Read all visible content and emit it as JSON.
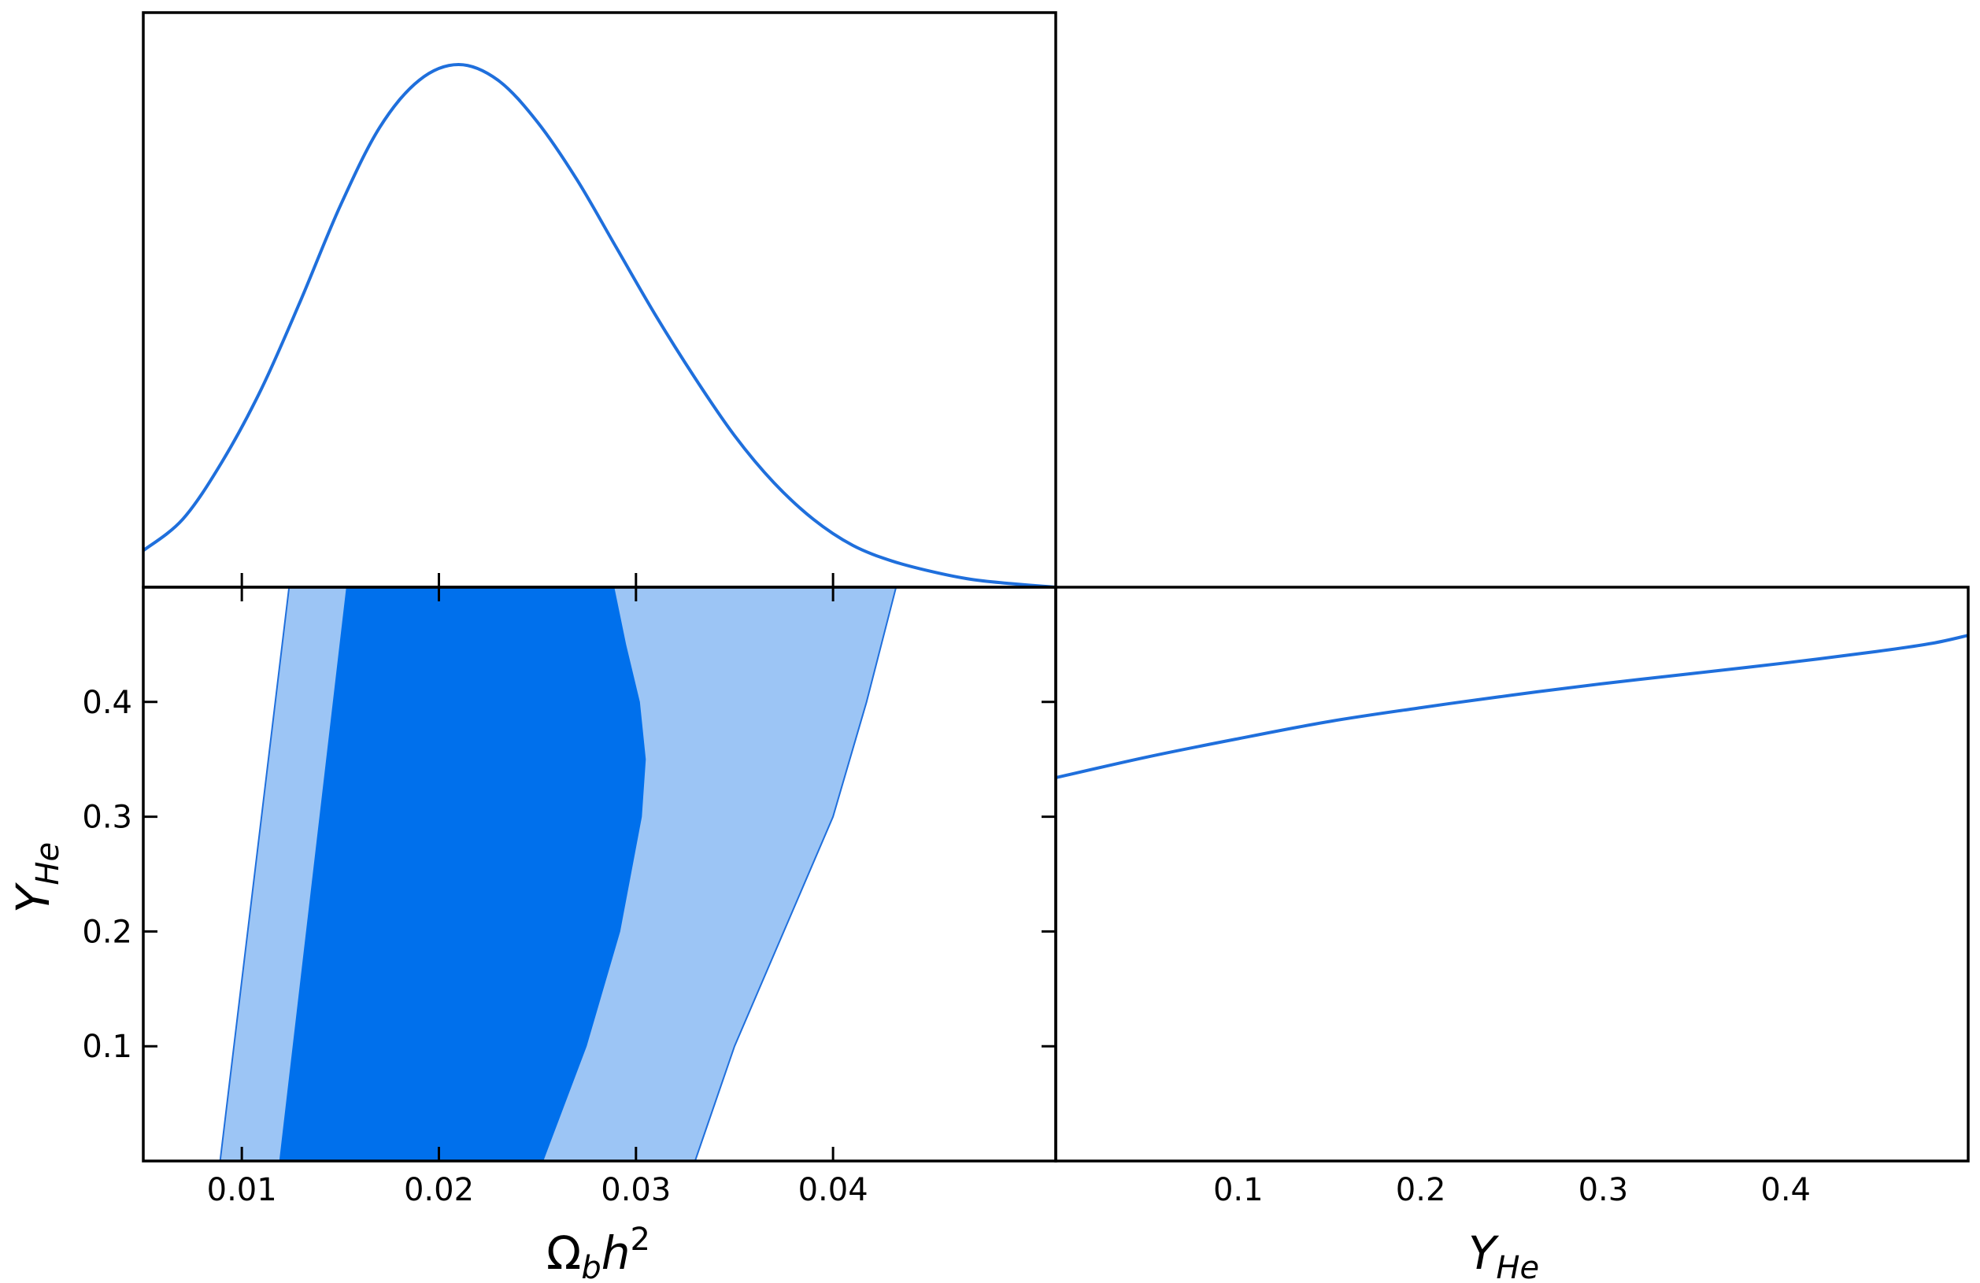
{
  "chart_data": [
    {
      "type": "line",
      "panel": "marginal-omegabh2",
      "xlim": [
        0.005,
        0.0513
      ],
      "x_ticks": [
        0.01,
        0.02,
        0.03,
        0.04
      ],
      "y_ticks_shown": false,
      "series": [
        {
          "color": "#1f6fdc",
          "x": [
            0.005,
            0.007,
            0.009,
            0.011,
            0.013,
            0.015,
            0.017,
            0.019,
            0.021,
            0.023,
            0.025,
            0.027,
            0.029,
            0.031,
            0.033,
            0.035,
            0.037,
            0.039,
            0.041,
            0.043,
            0.045,
            0.047,
            0.049,
            0.0513
          ],
          "y": [
            0.07,
            0.13,
            0.24,
            0.38,
            0.55,
            0.73,
            0.88,
            0.97,
            1.0,
            0.97,
            0.89,
            0.78,
            0.65,
            0.52,
            0.4,
            0.29,
            0.2,
            0.13,
            0.08,
            0.05,
            0.03,
            0.015,
            0.007,
            0.0
          ]
        }
      ]
    },
    {
      "type": "contour",
      "panel": "joint-omegabh2-yhe",
      "xlabel": "Ω_b h^2",
      "ylabel": "Y_He",
      "xlim": [
        0.005,
        0.0513
      ],
      "ylim": [
        0.0,
        0.5
      ],
      "x_ticks": [
        0.01,
        0.02,
        0.03,
        0.04
      ],
      "x_tick_labels": [
        "0.01",
        "0.02",
        "0.03",
        "0.04"
      ],
      "y_ticks": [
        0.1,
        0.2,
        0.3,
        0.4
      ],
      "y_tick_labels": [
        "0.1",
        "0.2",
        "0.3",
        "0.4"
      ],
      "regions": [
        {
          "level": "95%",
          "color": "#9cc5f5",
          "left_edge": [
            [
              0.0089,
              0.0
            ],
            [
              0.0124,
              0.5
            ]
          ],
          "right_edge": [
            [
              0.033,
              0.0
            ],
            [
              0.035,
              0.1
            ],
            [
              0.0375,
              0.2
            ],
            [
              0.04,
              0.3
            ],
            [
              0.0417,
              0.4
            ],
            [
              0.0432,
              0.5
            ]
          ]
        },
        {
          "level": "68%",
          "color": "#0070ec",
          "left_edge": [
            [
              0.0119,
              0.0
            ],
            [
              0.0153,
              0.5
            ]
          ],
          "right_edge": [
            [
              0.0253,
              0.0
            ],
            [
              0.0275,
              0.1
            ],
            [
              0.0292,
              0.2
            ],
            [
              0.0303,
              0.3
            ],
            [
              0.0305,
              0.35
            ],
            [
              0.0302,
              0.4
            ],
            [
              0.0295,
              0.45
            ],
            [
              0.0289,
              0.5
            ]
          ]
        }
      ]
    },
    {
      "type": "line",
      "panel": "marginal-yhe",
      "xlabel": "Y_He",
      "xlim": [
        0.0,
        0.5
      ],
      "x_ticks": [
        0.1,
        0.2,
        0.3,
        0.4
      ],
      "x_tick_labels": [
        "0.1",
        "0.2",
        "0.3",
        "0.4"
      ],
      "y_ticks_shown": false,
      "series": [
        {
          "color": "#1f6fdc",
          "x": [
            0.0,
            0.05,
            0.1,
            0.15,
            0.2,
            0.25,
            0.3,
            0.35,
            0.4,
            0.45,
            0.48,
            0.5
          ],
          "y": [
            0.334,
            0.352,
            0.368,
            0.383,
            0.395,
            0.406,
            0.416,
            0.425,
            0.434,
            0.444,
            0.451,
            0.458
          ]
        }
      ]
    }
  ]
}
